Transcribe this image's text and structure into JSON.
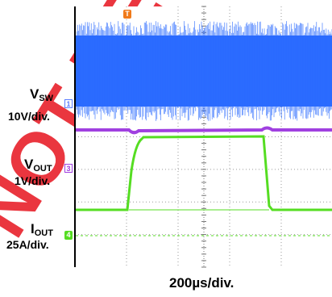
{
  "watermark": {
    "text": "NOT RECOMMENDED",
    "color": "#e8202a"
  },
  "chart_data": {
    "type": "line",
    "title": "",
    "xlabel": "200µs/div.",
    "grid": true,
    "x_divisions": 10,
    "y_divisions": 8,
    "trigger_marker": "T",
    "series": [
      {
        "name": "VSW",
        "scale": "10V/div.",
        "channel": "1",
        "color": "#2b6bff",
        "style": "switching-noise-band"
      },
      {
        "name": "VOUT",
        "scale": "1V/div.",
        "channel": "3",
        "color": "#a040e0",
        "style": "flat-with-dip"
      },
      {
        "name": "IOUT",
        "scale": "25A/div.",
        "channel": "4",
        "color": "#55dd22",
        "style": "load-step-pulse"
      }
    ],
    "labels": {
      "vsw": {
        "main": "V",
        "sub": "SW",
        "scale": "10V/div."
      },
      "vout": {
        "main": "V",
        "sub": "OUT",
        "scale": "1V/div."
      },
      "iout": {
        "main": "I",
        "sub": "OUT",
        "scale": "25A/div."
      }
    }
  }
}
